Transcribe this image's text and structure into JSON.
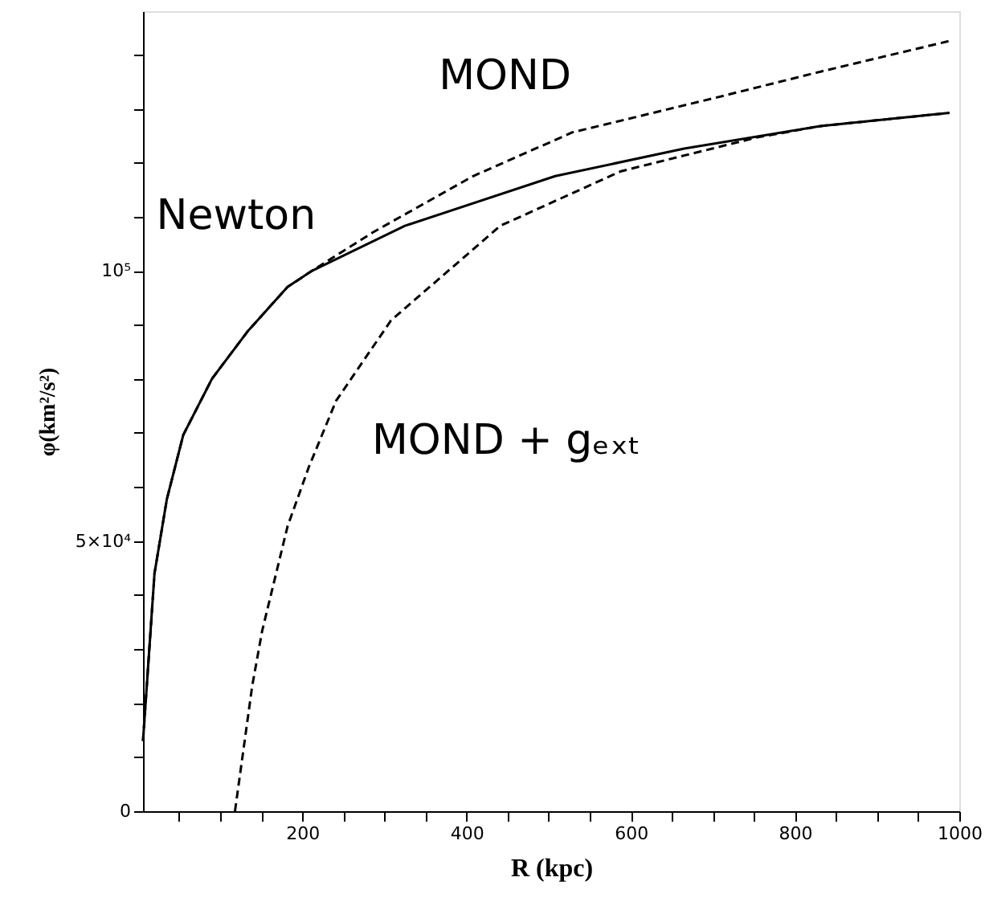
{
  "chart_data": {
    "type": "line",
    "xlabel": "R (kpc)",
    "ylabel": "φ(km²/s²)",
    "xlim": [
      6,
      1000
    ],
    "ylim": [
      0,
      148000
    ],
    "xticks": [
      {
        "value": 50,
        "label": null
      },
      {
        "value": 100,
        "label": null
      },
      {
        "value": 150,
        "label": null
      },
      200,
      {
        "value": 250,
        "label": null
      },
      {
        "value": 300,
        "label": null
      },
      {
        "value": 350,
        "label": null
      },
      400,
      {
        "value": 450,
        "label": null
      },
      {
        "value": 500,
        "label": null
      },
      {
        "value": 550,
        "label": null
      },
      600,
      {
        "value": 650,
        "label": null
      },
      {
        "value": 700,
        "label": null
      },
      {
        "value": 750,
        "label": null
      },
      800,
      {
        "value": 850,
        "label": null
      },
      {
        "value": 900,
        "label": null
      },
      {
        "value": 950,
        "label": null
      },
      1000
    ],
    "yticks": [
      {
        "value": 0,
        "label": "0"
      },
      {
        "value": 10000,
        "label": null
      },
      {
        "value": 20000,
        "label": null
      },
      {
        "value": 30000,
        "label": null
      },
      {
        "value": 40000,
        "label": null
      },
      {
        "value": 50000,
        "label": "5×10⁴"
      },
      {
        "value": 60000,
        "label": null
      },
      {
        "value": 70000,
        "label": null
      },
      {
        "value": 80000,
        "label": null
      },
      {
        "value": 90000,
        "label": null
      },
      {
        "value": 100000,
        "label": "10⁵"
      },
      {
        "value": 110000,
        "label": null
      },
      {
        "value": 120000,
        "label": null
      },
      {
        "value": 130000,
        "label": null
      },
      {
        "value": 140000,
        "label": null
      }
    ],
    "grid": false,
    "marker": "none",
    "series": [
      {
        "name": "Newton",
        "color": "#000000",
        "line_style": "solid",
        "x": [
          6,
          20,
          35,
          55,
          90,
          133,
          182,
          212,
          325,
          508,
          665,
          833,
          988
        ],
        "values": [
          13000,
          44000,
          57700,
          69600,
          80000,
          88700,
          97000,
          100000,
          108300,
          117500,
          122600,
          126800,
          129200
        ]
      },
      {
        "name": "MOND",
        "color": "#000000",
        "line_style": "dashed",
        "x": [
          6,
          20,
          35,
          55,
          90,
          133,
          182,
          212,
          286,
          408,
          529,
          698,
          833,
          988
        ],
        "values": [
          13000,
          44000,
          57700,
          69600,
          80000,
          88700,
          97000,
          100000,
          107100,
          117500,
          125600,
          131800,
          136900,
          142500
        ]
      },
      {
        "name": "MOND + gₑₓₜ",
        "color": "#000000",
        "line_style": "dashed",
        "x": [
          118,
          139,
          151,
          182,
          208,
          241,
          308,
          441,
          588,
          755,
          833,
          988
        ],
        "values": [
          0,
          23200,
          33300,
          52700,
          63700,
          75900,
          90800,
          108300,
          118400,
          124700,
          126800,
          129200
        ]
      }
    ]
  }
}
